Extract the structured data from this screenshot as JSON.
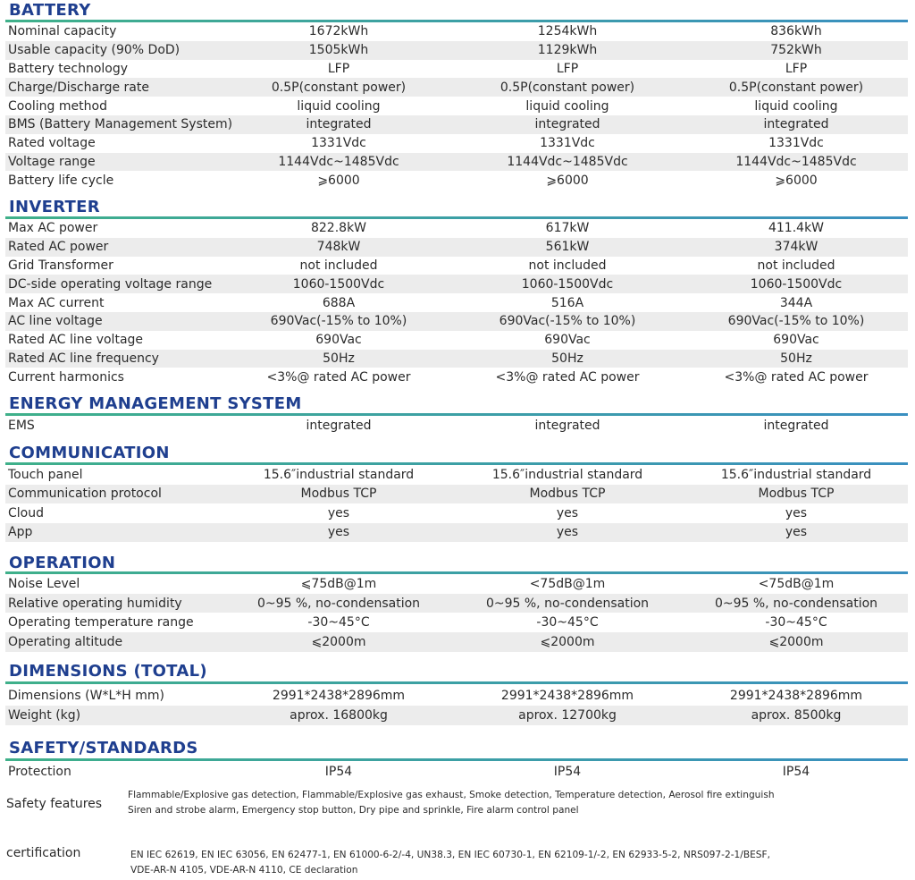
{
  "sections": [
    {
      "title": "BATTERY",
      "rows": [
        [
          "Nominal capacity",
          "1672kWh",
          "1254kWh",
          "836kWh"
        ],
        [
          "Usable capacity (90% DoD)",
          "1505kWh",
          "1129kWh",
          "752kWh"
        ],
        [
          "Battery technology",
          "LFP",
          "LFP",
          "LFP"
        ],
        [
          "Charge/Discharge rate",
          "0.5P(constant power)",
          "0.5P(constant power)",
          "0.5P(constant power)"
        ],
        [
          "Cooling method",
          "liquid cooling",
          "liquid cooling",
          "liquid cooling"
        ],
        [
          "BMS (Battery Management System)",
          "integrated",
          "integrated",
          "integrated"
        ],
        [
          "Rated voltage",
          "1331Vdc",
          "1331Vdc",
          "1331Vdc"
        ],
        [
          "Voltage range",
          "1144Vdc~1485Vdc",
          "1144Vdc~1485Vdc",
          "1144Vdc~1485Vdc"
        ],
        [
          "Battery life cycle",
          "⩾6000",
          "⩾6000",
          "⩾6000"
        ]
      ]
    },
    {
      "title": "INVERTER",
      "rows": [
        [
          "Max AC power",
          "822.8kW",
          "617kW",
          "411.4kW"
        ],
        [
          "Rated AC power",
          "748kW",
          "561kW",
          "374kW"
        ],
        [
          "Grid Transformer",
          "not included",
          "not included",
          "not included"
        ],
        [
          "DC-side operating voltage range",
          "1060-1500Vdc",
          "1060-1500Vdc",
          "1060-1500Vdc"
        ],
        [
          "Max AC current",
          "688A",
          "516A",
          "344A"
        ],
        [
          "AC line voltage",
          "690Vac(-15% to 10%)",
          "690Vac(-15% to 10%)",
          "690Vac(-15% to 10%)"
        ],
        [
          "Rated AC line voltage",
          "690Vac",
          "690Vac",
          "690Vac"
        ],
        [
          "Rated AC line frequency",
          "50Hz",
          "50Hz",
          "50Hz"
        ],
        [
          "Current harmonics",
          "<3%@ rated AC power",
          "<3%@ rated AC power",
          "<3%@ rated AC power"
        ]
      ]
    },
    {
      "title": "ENERGY MANAGEMENT SYSTEM",
      "rows": [
        [
          "EMS",
          "integrated",
          "integrated",
          "integrated"
        ]
      ]
    },
    {
      "title": "COMMUNICATION",
      "rows": [
        [
          "Touch panel",
          "15.6″industrial standard",
          "15.6″industrial standard",
          "15.6″industrial standard"
        ],
        [
          "Communication protocol",
          "Modbus TCP",
          "Modbus TCP",
          "Modbus TCP"
        ],
        [
          "Cloud",
          "yes",
          "yes",
          "yes"
        ],
        [
          "App",
          "yes",
          "yes",
          "yes"
        ]
      ]
    },
    {
      "title": "OPERATION",
      "rows": [
        [
          "Noise Level",
          "⩽75dB@1m",
          "<75dB@1m",
          "<75dB@1m"
        ],
        [
          "Relative operating humidity",
          "0~95 %, no-condensation",
          "0~95 %, no-condensation",
          "0~95 %, no-condensation"
        ],
        [
          "Operating temperature range",
          "-30~45°C",
          "-30~45°C",
          "-30~45°C"
        ],
        [
          "Operating altitude",
          "⩽2000m",
          "⩽2000m",
          "⩽2000m"
        ]
      ]
    },
    {
      "title": "DIMENSIONS (TOTAL)",
      "rows": [
        [
          "Dimensions (W*L*H mm)",
          "2991*2438*2896mm",
          "2991*2438*2896mm",
          "2991*2438*2896mm"
        ],
        [
          "Weight (kg)",
          "aprox. 16800kg",
          "aprox. 12700kg",
          "aprox. 8500kg"
        ]
      ]
    },
    {
      "title": "SAFETY/STANDARDS",
      "rows": [
        [
          "Protection",
          "IP54",
          "IP54",
          "IP54"
        ]
      ]
    }
  ],
  "safety_features": {
    "label": "Safety features",
    "lines": [
      "Flammable/Explosive gas detection, Flammable/Explosive gas exhaust, Smoke detection, Temperature detection, Aerosol fire extinguish",
      "Siren and strobe alarm, Emergency stop button, Dry pipe and sprinkle, Fire alarm control panel"
    ]
  },
  "certification": {
    "label": "certification",
    "lines": [
      "EN IEC 62619, EN IEC 63056, EN 62477-1, EN 61000-6-2/-4, UN38.3, EN IEC 60730-1, EN 62109-1/-2, EN 62933-5-2, NRS097-2-1/BESF,",
      "VDE-AR-N 4105, VDE-AR-N 4110, CE declaration"
    ]
  },
  "colors": {
    "heading": "#1f3f8f",
    "rule_start": "#3fb08a",
    "rule_end": "#3a8fc0",
    "stripe": "#ececec"
  }
}
